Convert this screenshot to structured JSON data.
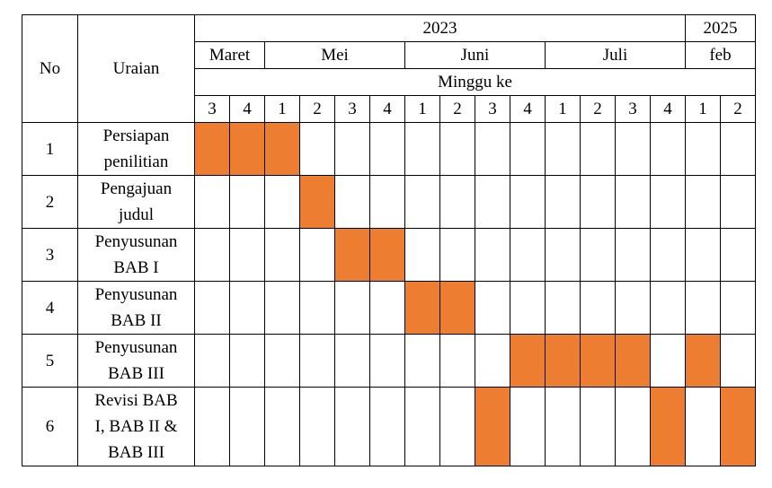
{
  "header": {
    "no": "No",
    "uraian": "Uraian",
    "year_2023": "2023",
    "year_2025": "2025",
    "minggu_ke": "Minggu ke",
    "months": [
      "Maret",
      "Mei",
      "Juni",
      "Juli",
      "feb"
    ],
    "weeks": [
      "3",
      "4",
      "1",
      "2",
      "3",
      "4",
      "1",
      "2",
      "3",
      "4",
      "1",
      "2",
      "3",
      "4",
      "1",
      "2"
    ]
  },
  "activities": [
    {
      "no": "1",
      "lines": [
        "Persiapan",
        "penilitian"
      ],
      "filled_weeks": [
        0,
        1,
        2
      ]
    },
    {
      "no": "2",
      "lines": [
        "Pengajuan",
        "judul"
      ],
      "filled_weeks": [
        3
      ]
    },
    {
      "no": "3",
      "lines": [
        "Penyusunan",
        "BAB I"
      ],
      "filled_weeks": [
        4,
        5
      ]
    },
    {
      "no": "4",
      "lines": [
        "Penyusunan",
        "BAB II"
      ],
      "filled_weeks": [
        6,
        7
      ]
    },
    {
      "no": "5",
      "lines": [
        "Penyusunan",
        "BAB III"
      ],
      "filled_weeks": [
        9,
        10,
        11,
        12,
        14
      ]
    },
    {
      "no": "6",
      "lines": [
        "Revisi BAB",
        "I, BAB II &",
        "BAB III"
      ],
      "filled_weeks": [
        8,
        13,
        15
      ]
    }
  ],
  "colors": {
    "filled": "#ED7D31",
    "grid": "#000000"
  }
}
